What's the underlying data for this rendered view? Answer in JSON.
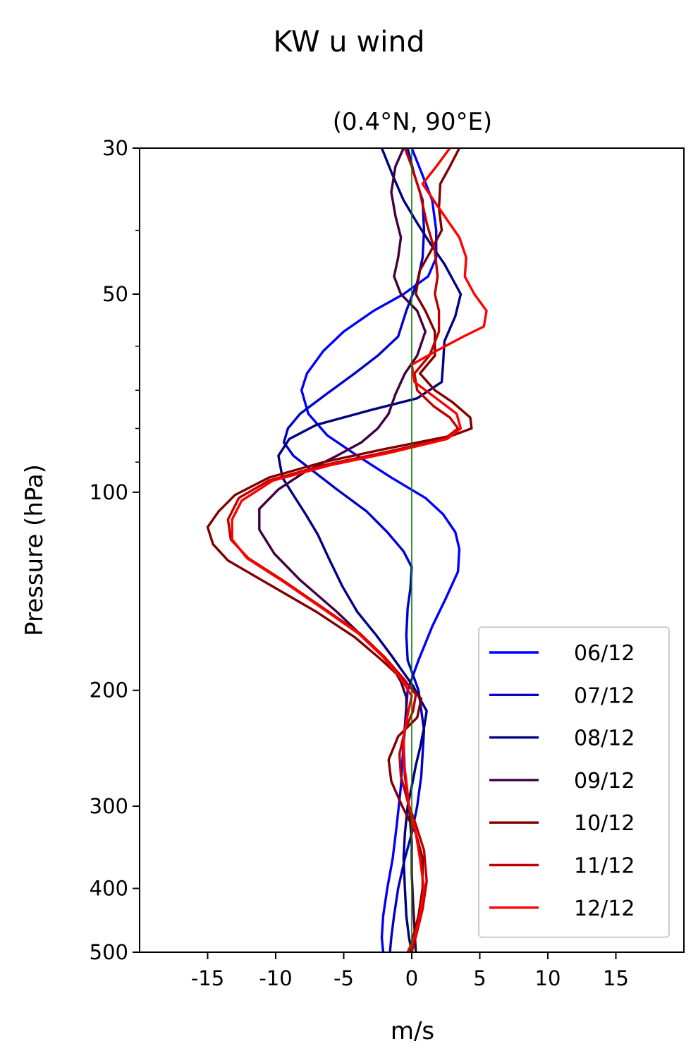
{
  "figure": {
    "suptitle": "KW u wind"
  },
  "chart_data": {
    "type": "line",
    "title": "(0.4°N, 90°E)",
    "xlabel": "m/s",
    "ylabel": "Pressure (hPa)",
    "xlim": [
      -20,
      20
    ],
    "ylim": [
      500,
      30
    ],
    "yscale": "log",
    "xticks": [
      -15,
      -10,
      -5,
      0,
      5,
      10,
      15
    ],
    "xtick_labels": [
      "-15",
      "-10",
      "-5",
      "0",
      "5",
      "10",
      "15"
    ],
    "yticks": [
      30,
      50,
      100,
      200,
      300,
      400,
      500
    ],
    "ytick_labels": [
      "30",
      "50",
      "100",
      "200",
      "300",
      "400",
      "500"
    ],
    "grid": false,
    "legend_position": "lower right",
    "reference_line": {
      "x": 0,
      "color": "#008000"
    },
    "series": [
      {
        "name": "06/12",
        "color": "#0000ff",
        "points": [
          [
            0,
            30
          ],
          [
            0.8,
            33
          ],
          [
            1.5,
            36
          ],
          [
            1.8,
            40
          ],
          [
            1.8,
            44
          ],
          [
            1.2,
            47
          ],
          [
            -0.6,
            50
          ],
          [
            -2.8,
            53
          ],
          [
            -5,
            57
          ],
          [
            -6.5,
            61
          ],
          [
            -7.7,
            66
          ],
          [
            -8.1,
            70
          ],
          [
            -7.6,
            76
          ],
          [
            -6.2,
            82
          ],
          [
            -4,
            88
          ],
          [
            -1.5,
            95
          ],
          [
            1,
            102
          ],
          [
            2.3,
            108
          ],
          [
            3.2,
            115
          ],
          [
            3.5,
            122
          ],
          [
            3.4,
            132
          ],
          [
            2.5,
            145
          ],
          [
            1.5,
            160
          ],
          [
            0.5,
            180
          ],
          [
            -0.3,
            200
          ],
          [
            -0.6,
            240
          ],
          [
            -0.8,
            280
          ],
          [
            -1.1,
            320
          ],
          [
            -1.4,
            360
          ],
          [
            -1.8,
            400
          ],
          [
            -2.1,
            440
          ],
          [
            -2.2,
            475
          ],
          [
            -2.1,
            500
          ]
        ]
      },
      {
        "name": "07/12",
        "color": "#0000cc",
        "points": [
          [
            -0.3,
            30
          ],
          [
            0.2,
            33
          ],
          [
            0.8,
            36
          ],
          [
            0.9,
            40
          ],
          [
            0.8,
            44
          ],
          [
            0.4,
            48
          ],
          [
            -0.4,
            53
          ],
          [
            -1,
            58
          ],
          [
            -2.5,
            62
          ],
          [
            -4.2,
            66
          ],
          [
            -6.3,
            71
          ],
          [
            -8.2,
            76
          ],
          [
            -9.1,
            80
          ],
          [
            -9.4,
            84
          ],
          [
            -8.7,
            88
          ],
          [
            -7.5,
            92
          ],
          [
            -5.5,
            99
          ],
          [
            -3.3,
            107
          ],
          [
            -1.8,
            115
          ],
          [
            -0.6,
            123
          ],
          [
            0,
            130
          ],
          [
            -0.1,
            140
          ],
          [
            -0.3,
            150
          ],
          [
            -0.4,
            165
          ],
          [
            -0.3,
            180
          ],
          [
            0.5,
            200
          ],
          [
            0.9,
            230
          ],
          [
            0.7,
            270
          ],
          [
            0.4,
            300
          ],
          [
            0,
            330
          ],
          [
            -0.5,
            360
          ],
          [
            -1,
            400
          ],
          [
            -1.3,
            440
          ],
          [
            -1.5,
            475
          ],
          [
            -1.6,
            500
          ]
        ]
      },
      {
        "name": "08/12",
        "color": "#000080",
        "points": [
          [
            -2.2,
            30
          ],
          [
            -1.4,
            33
          ],
          [
            -0.6,
            36
          ],
          [
            0.4,
            39
          ],
          [
            1.4,
            42
          ],
          [
            2.4,
            45
          ],
          [
            3.6,
            50
          ],
          [
            3.2,
            54
          ],
          [
            2.4,
            59
          ],
          [
            2.3,
            64
          ],
          [
            2.2,
            68
          ],
          [
            0.4,
            72
          ],
          [
            -3,
            75
          ],
          [
            -7,
            79
          ],
          [
            -9,
            83
          ],
          [
            -9.8,
            88
          ],
          [
            -9.5,
            95
          ],
          [
            -8.7,
            101
          ],
          [
            -7.8,
            108
          ],
          [
            -6.9,
            116
          ],
          [
            -6.1,
            126
          ],
          [
            -5.1,
            139
          ],
          [
            -4,
            152
          ],
          [
            -2.6,
            165
          ],
          [
            -1.5,
            177
          ],
          [
            -0.6,
            188
          ],
          [
            0.1,
            197
          ],
          [
            0.6,
            206
          ],
          [
            1.1,
            215
          ],
          [
            0.9,
            228
          ],
          [
            0.6,
            245
          ],
          [
            0.3,
            260
          ],
          [
            0,
            280
          ],
          [
            -0.3,
            300
          ],
          [
            -0.5,
            330
          ],
          [
            -0.6,
            360
          ],
          [
            -0.5,
            400
          ],
          [
            -0.4,
            440
          ],
          [
            -0.2,
            475
          ],
          [
            0,
            500
          ]
        ]
      },
      {
        "name": "09/12",
        "color": "#400040",
        "points": [
          [
            -0.6,
            30
          ],
          [
            -1.2,
            32
          ],
          [
            -1.5,
            35
          ],
          [
            -1.2,
            38
          ],
          [
            -0.8,
            41
          ],
          [
            -1,
            44
          ],
          [
            -1.3,
            47
          ],
          [
            -0.8,
            50
          ],
          [
            0.4,
            53
          ],
          [
            1,
            57
          ],
          [
            0.4,
            62
          ],
          [
            -0.5,
            66
          ],
          [
            -1.2,
            71
          ],
          [
            -1.7,
            76
          ],
          [
            -2.5,
            80
          ],
          [
            -3.7,
            84
          ],
          [
            -5.5,
            88
          ],
          [
            -7.8,
            93
          ],
          [
            -9.8,
            99
          ],
          [
            -11.2,
            106
          ],
          [
            -11.2,
            114
          ],
          [
            -10.1,
            124
          ],
          [
            -8.2,
            136
          ],
          [
            -5.5,
            152
          ],
          [
            -3.3,
            168
          ],
          [
            -1.5,
            183
          ],
          [
            -0.8,
            194
          ],
          [
            -0.4,
            205
          ],
          [
            -0.4,
            220
          ],
          [
            -0.6,
            240
          ],
          [
            -0.5,
            270
          ],
          [
            -0.2,
            300
          ],
          [
            0,
            340
          ],
          [
            0,
            380
          ],
          [
            0.1,
            420
          ],
          [
            0.2,
            460
          ],
          [
            0.3,
            500
          ]
        ]
      },
      {
        "name": "10/12",
        "color": "#800000",
        "points": [
          [
            3.5,
            30
          ],
          [
            2.8,
            32
          ],
          [
            2.1,
            34
          ],
          [
            2,
            37
          ],
          [
            2.2,
            40
          ],
          [
            1.4,
            43
          ],
          [
            0.6,
            46
          ],
          [
            0.3,
            50
          ],
          [
            1,
            53
          ],
          [
            1.7,
            57
          ],
          [
            1.7,
            62
          ],
          [
            0.6,
            66
          ],
          [
            1.7,
            70
          ],
          [
            3,
            73
          ],
          [
            4.3,
            77
          ],
          [
            4.4,
            80
          ],
          [
            3,
            82
          ],
          [
            -2,
            86
          ],
          [
            -6.5,
            90
          ],
          [
            -10.5,
            95
          ],
          [
            -13,
            101
          ],
          [
            -14.2,
            107
          ],
          [
            -15,
            113
          ],
          [
            -14.6,
            120
          ],
          [
            -13.5,
            127
          ],
          [
            -10.5,
            138
          ],
          [
            -7,
            152
          ],
          [
            -4.2,
            166
          ],
          [
            -2.2,
            180
          ],
          [
            -0.5,
            194
          ],
          [
            0.7,
            206
          ],
          [
            0.4,
            220
          ],
          [
            -1,
            235
          ],
          [
            -1.7,
            255
          ],
          [
            -1.5,
            275
          ],
          [
            -0.7,
            300
          ],
          [
            0.3,
            330
          ],
          [
            0.8,
            360
          ],
          [
            0.8,
            400
          ],
          [
            0.5,
            440
          ],
          [
            0.1,
            475
          ],
          [
            -0.2,
            500
          ]
        ]
      },
      {
        "name": "11/12",
        "color": "#c00000",
        "points": [
          [
            -0.5,
            30
          ],
          [
            0,
            32
          ],
          [
            0.6,
            35
          ],
          [
            1.1,
            39
          ],
          [
            1.7,
            43
          ],
          [
            1.9,
            47
          ],
          [
            1.7,
            50
          ],
          [
            2,
            53
          ],
          [
            2,
            57
          ],
          [
            1.3,
            62
          ],
          [
            0.2,
            66
          ],
          [
            0.4,
            70
          ],
          [
            1.6,
            74
          ],
          [
            2.8,
            77
          ],
          [
            3.4,
            80
          ],
          [
            2.4,
            83
          ],
          [
            -2,
            87
          ],
          [
            -6.5,
            91
          ],
          [
            -10.5,
            96
          ],
          [
            -12.7,
            102
          ],
          [
            -13.5,
            110
          ],
          [
            -13.3,
            118
          ],
          [
            -12,
            126
          ],
          [
            -9.5,
            136
          ],
          [
            -6.5,
            150
          ],
          [
            -3.8,
            164
          ],
          [
            -2,
            178
          ],
          [
            -0.6,
            192
          ],
          [
            0.3,
            203
          ],
          [
            0.1,
            215
          ],
          [
            -0.5,
            230
          ],
          [
            -0.9,
            250
          ],
          [
            -0.8,
            270
          ],
          [
            -0.3,
            295
          ],
          [
            0.3,
            320
          ],
          [
            0.9,
            350
          ],
          [
            1.1,
            390
          ],
          [
            0.8,
            430
          ],
          [
            0.4,
            465
          ],
          [
            0,
            500
          ]
        ]
      },
      {
        "name": "12/12",
        "color": "#ff0000",
        "points": [
          [
            2.8,
            30
          ],
          [
            1.8,
            32
          ],
          [
            0.8,
            34
          ],
          [
            2,
            37
          ],
          [
            3.5,
            41
          ],
          [
            4,
            44
          ],
          [
            3.9,
            47
          ],
          [
            4.6,
            50
          ],
          [
            5.5,
            53
          ],
          [
            5.3,
            56
          ],
          [
            3.8,
            58
          ],
          [
            1.8,
            61
          ],
          [
            0,
            64
          ],
          [
            0.2,
            68
          ],
          [
            1.8,
            72
          ],
          [
            3.3,
            76
          ],
          [
            3.6,
            80
          ],
          [
            2.6,
            83
          ],
          [
            -1.5,
            87
          ],
          [
            -6,
            91
          ],
          [
            -10.2,
            96
          ],
          [
            -12.5,
            103
          ],
          [
            -13.2,
            110
          ],
          [
            -13.2,
            118
          ],
          [
            -12.1,
            126
          ],
          [
            -9.6,
            136
          ],
          [
            -6.6,
            150
          ],
          [
            -3.9,
            164
          ],
          [
            -2.1,
            178
          ],
          [
            -0.8,
            192
          ],
          [
            0,
            204
          ],
          [
            -0.3,
            218
          ],
          [
            -0.6,
            235
          ],
          [
            -0.6,
            255
          ],
          [
            -0.4,
            275
          ],
          [
            -0.2,
            300
          ],
          [
            0.3,
            330
          ],
          [
            0.6,
            360
          ],
          [
            0.9,
            400
          ],
          [
            0.6,
            440
          ],
          [
            0.2,
            475
          ],
          [
            -0.3,
            500
          ]
        ]
      }
    ]
  }
}
